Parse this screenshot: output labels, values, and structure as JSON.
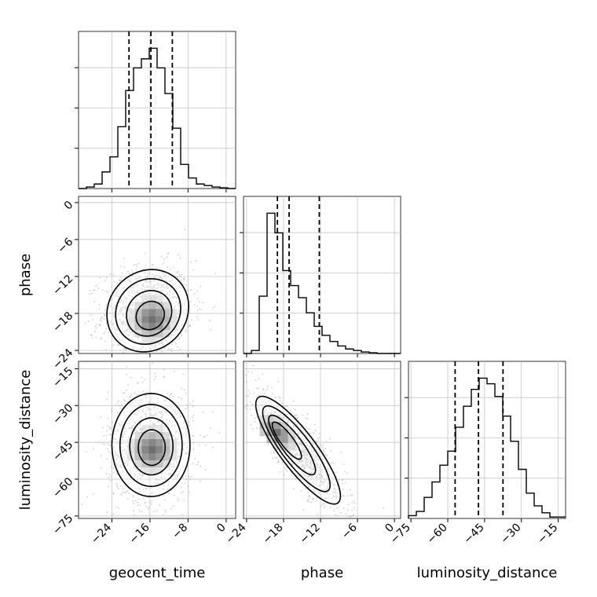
{
  "chart_data": {
    "type": "corner",
    "parameters": [
      "geocent_time",
      "phase",
      "luminosity_distance"
    ],
    "axis_labels": {
      "x": [
        "geocent_time",
        "phase",
        "luminosity_distance"
      ],
      "y": [
        "phase",
        "luminosity_distance"
      ]
    },
    "ranges": {
      "geocent_time": [
        -31,
        2
      ],
      "phase": [
        -24.5,
        1
      ],
      "luminosity_distance": [
        -76,
        -12
      ]
    },
    "ticks": {
      "geocent_time": [
        -24,
        -16,
        -8,
        0
      ],
      "phase": [
        -24,
        -18,
        -12,
        -6,
        0
      ],
      "luminosity_distance": [
        -75,
        -60,
        -45,
        -30,
        -15
      ]
    },
    "tick_labels": {
      "geocent_time": [
        "−24",
        "−16",
        "−8",
        "0"
      ],
      "phase": [
        "−24",
        "−18",
        "−12",
        "−6",
        "0"
      ],
      "luminosity_distance": [
        "−75",
        "−60",
        "−45",
        "−30",
        "−15"
      ]
    },
    "grid": true,
    "colors": {
      "line": "#000000",
      "scatter": "#9e9e9e",
      "grid": "#bdbdbd"
    },
    "histograms": {
      "geocent_time": {
        "bin_edges": [
          -31,
          -29.35,
          -27.7,
          -26.05,
          -24.4,
          -22.75,
          -21.1,
          -19.45,
          -17.8,
          -16.15,
          -14.5,
          -12.85,
          -11.2,
          -9.55,
          -7.9,
          -6.25,
          -4.6,
          -2.95,
          -1.3,
          0.35,
          2
        ],
        "counts": [
          0,
          0.01,
          0.03,
          0.11,
          0.21,
          0.41,
          0.65,
          0.8,
          0.86,
          0.93,
          0.8,
          0.63,
          0.4,
          0.16,
          0.07,
          0.03,
          0.02,
          0.01,
          0.005,
          0
        ],
        "quantiles": [
          -20.4,
          -15.8,
          -11.3
        ]
      },
      "phase": {
        "bin_edges": [
          -24.5,
          -23.225,
          -21.95,
          -20.675,
          -19.4,
          -18.125,
          -16.85,
          -15.575,
          -14.3,
          -13.025,
          -11.75,
          -10.475,
          -9.2,
          -7.925,
          -6.65,
          -5.375,
          -4.1,
          -2.825,
          -1.55,
          -0.275,
          1
        ],
        "counts": [
          0,
          0.02,
          0.38,
          0.93,
          0.8,
          0.55,
          0.45,
          0.37,
          0.27,
          0.18,
          0.12,
          0.08,
          0.05,
          0.03,
          0.02,
          0.01,
          0.005,
          0,
          0,
          0
        ],
        "quantiles": [
          -19.0,
          -17.1,
          -12.2
        ]
      },
      "luminosity_distance": {
        "bin_edges": [
          -76,
          -72.8,
          -69.6,
          -66.4,
          -63.2,
          -60,
          -56.8,
          -53.6,
          -50.4,
          -47.2,
          -44,
          -40.8,
          -37.6,
          -34.4,
          -31.2,
          -28,
          -24.8,
          -21.6,
          -18.4,
          -15.2,
          -12
        ],
        "counts": [
          0.02,
          0.05,
          0.15,
          0.26,
          0.38,
          0.48,
          0.65,
          0.8,
          0.92,
          1.0,
          0.96,
          0.87,
          0.73,
          0.55,
          0.35,
          0.18,
          0.09,
          0.04,
          0.01,
          0.01
        ],
        "quantiles": [
          -57,
          -47.5,
          -37.5
        ]
      }
    },
    "density_2d": [
      {
        "x_param": "geocent_time",
        "y_param": "phase",
        "center": [
          -16.5,
          -17.5
        ],
        "sigma": [
          4.5,
          3.5
        ],
        "rho": 0.1,
        "peak": [
          -15.5,
          -19.0
        ],
        "contour_levels": [
          0.95,
          0.85,
          0.6,
          0.3
        ],
        "scatter_count": 1100
      },
      {
        "x_param": "geocent_time",
        "y_param": "luminosity_distance",
        "center": [
          -15.8,
          -46
        ],
        "sigma": [
          4.3,
          11
        ],
        "rho": 0.0,
        "peak": [
          -15.5,
          -48
        ],
        "contour_levels": [
          0.95,
          0.85,
          0.6,
          0.3
        ],
        "scatter_count": 1100
      },
      {
        "x_param": "phase",
        "y_param": "luminosity_distance",
        "center": [
          -15.5,
          -48.5
        ],
        "sigma": [
          3.6,
          11.5
        ],
        "rho": -0.85,
        "peak": [
          -19.0,
          -41
        ],
        "contour_levels": [
          0.95,
          0.85,
          0.6,
          0.3
        ],
        "scatter_count": 1100
      }
    ]
  }
}
